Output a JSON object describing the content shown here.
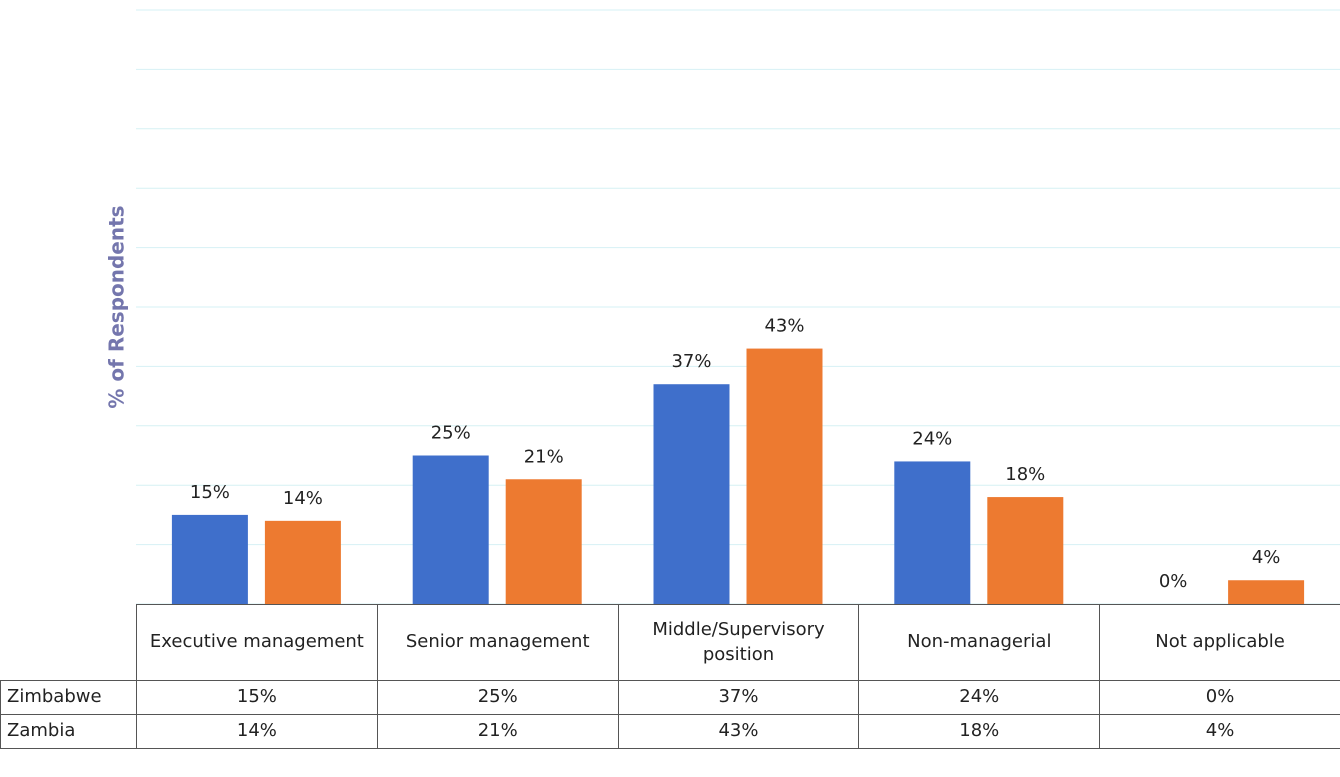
{
  "chart_data": {
    "type": "bar",
    "y_label": "% of Respondents",
    "categories": [
      "Executive management",
      "Senior management",
      "Middle/Supervisory position",
      "Non-managerial",
      "Not applicable"
    ],
    "series": [
      {
        "name": "Zimbabwe",
        "color": "#3f6fcb",
        "values": [
          15,
          25,
          37,
          24,
          0
        ],
        "value_labels": [
          "15%",
          "25%",
          "37%",
          "24%",
          "0%"
        ]
      },
      {
        "name": "Zambia",
        "color": "#ed7a30",
        "values": [
          14,
          21,
          43,
          18,
          4
        ],
        "value_labels": [
          "14%",
          "21%",
          "43%",
          "18%",
          "4%"
        ]
      }
    ],
    "ylim": [
      0,
      100
    ],
    "yticks": [
      0,
      10,
      20,
      30,
      40,
      50,
      60,
      70,
      80,
      90,
      100
    ],
    "grid": true
  }
}
